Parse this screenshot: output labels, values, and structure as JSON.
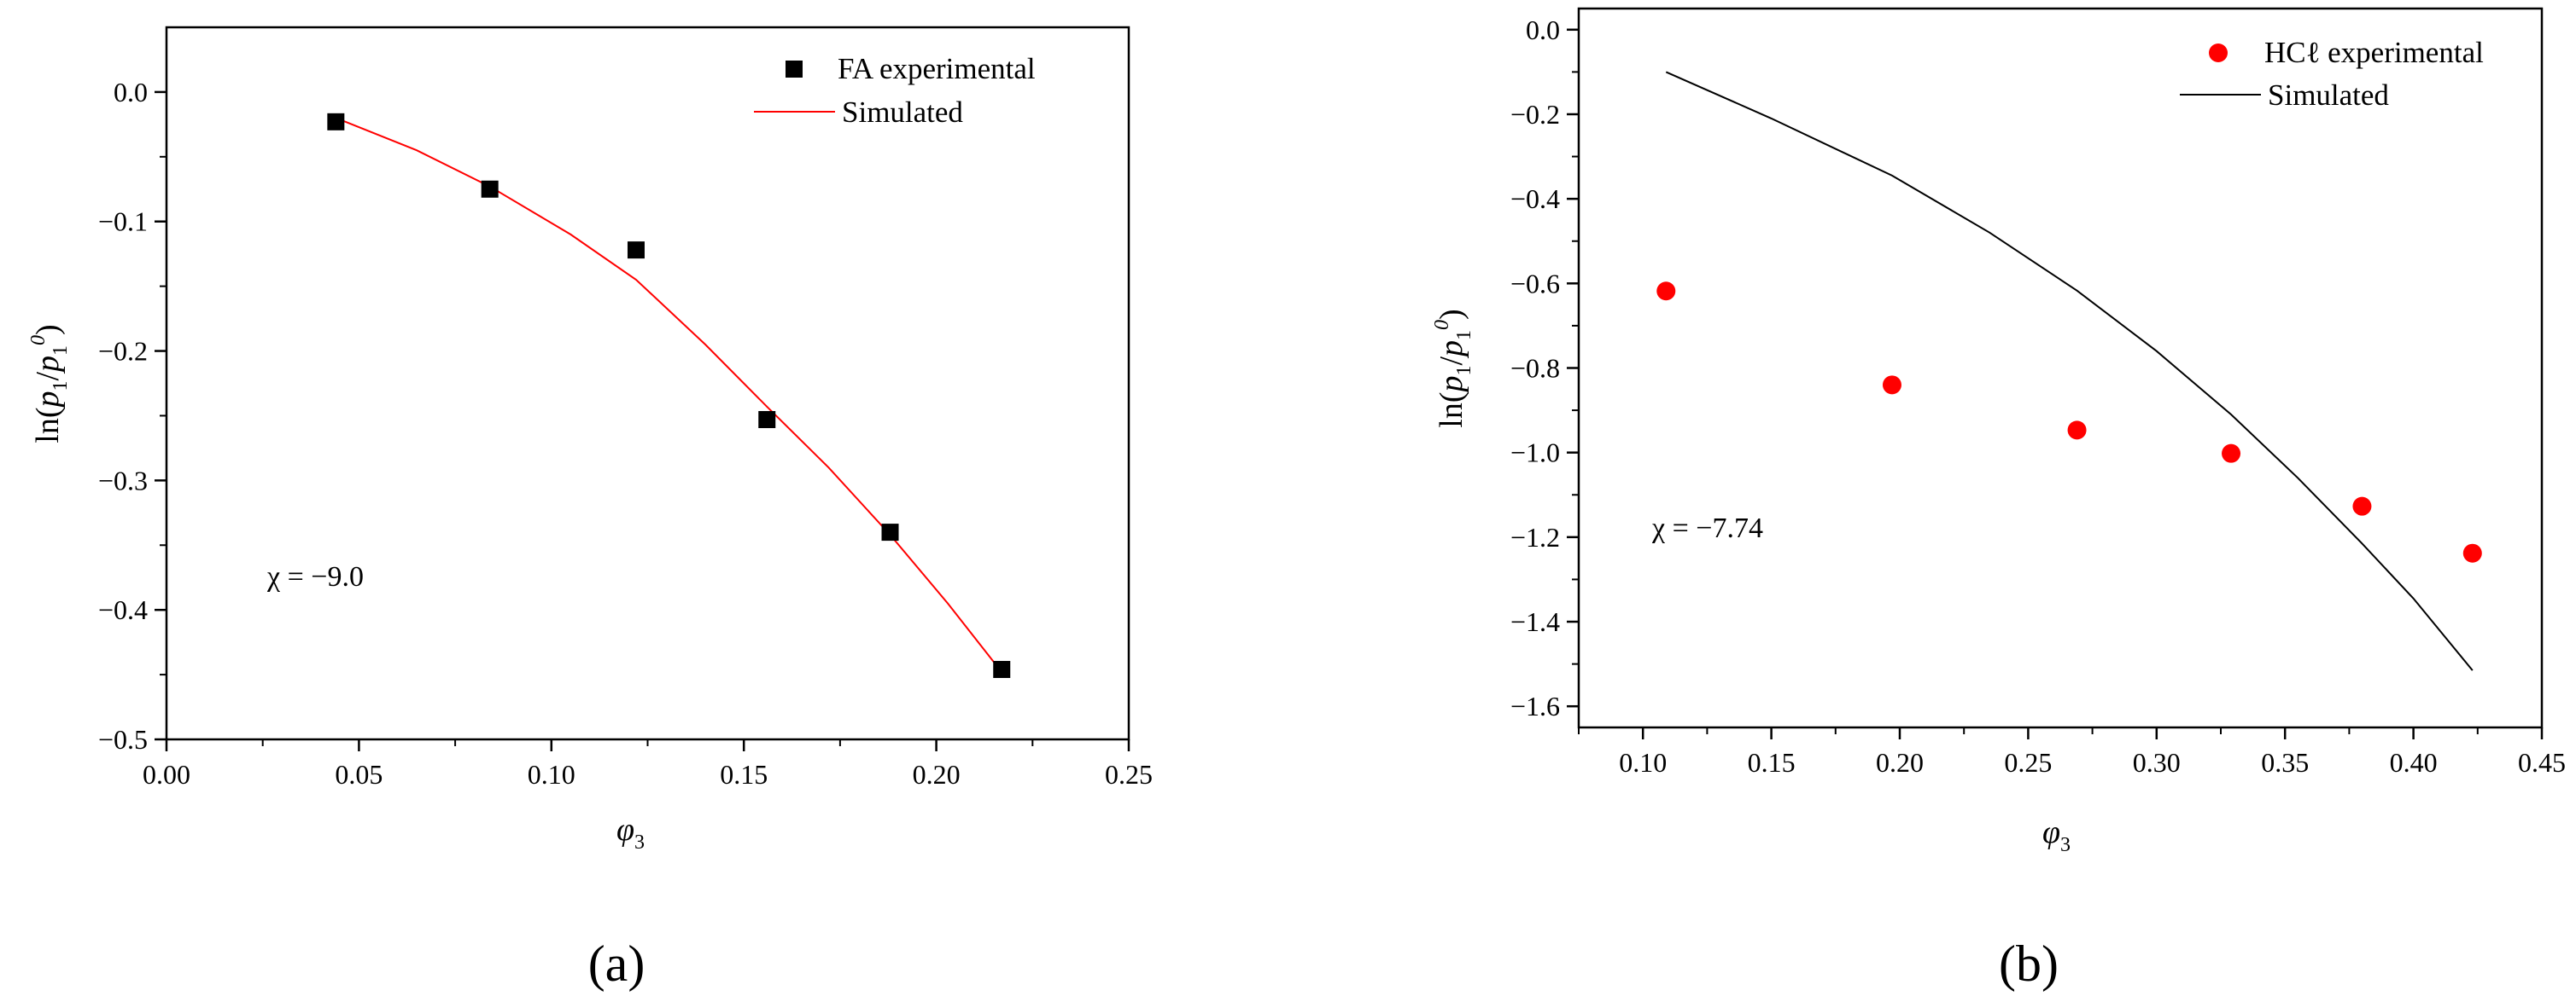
{
  "chart_data": [
    {
      "type": "scatter",
      "panel_label": "(a)",
      "xlabel": "φ3",
      "ylabel": "ln(p1/p1^0)",
      "xlim": [
        0.0,
        0.25
      ],
      "ylim": [
        -0.5,
        0.05
      ],
      "xticks": [
        0.0,
        0.05,
        0.1,
        0.15,
        0.2,
        0.25
      ],
      "xtick_labels": [
        "0.00",
        "0.05",
        "0.10",
        "0.15",
        "0.20",
        "0.25"
      ],
      "yticks": [
        0.0,
        -0.1,
        -0.2,
        -0.3,
        -0.4,
        -0.5
      ],
      "ytick_labels": [
        "0.0",
        "−0.1",
        "−0.2",
        "−0.3",
        "−0.4",
        "−0.5"
      ],
      "grid": false,
      "legend_position": "top-right",
      "annotation": "χ = −9.0",
      "series": [
        {
          "name": "FA experimental",
          "kind": "markers",
          "marker": "square",
          "color": "#000000",
          "x": [
            0.044,
            0.084,
            0.122,
            0.156,
            0.188,
            0.217
          ],
          "y": [
            -0.023,
            -0.075,
            -0.122,
            -0.253,
            -0.34,
            -0.446
          ]
        },
        {
          "name": "Simulated",
          "kind": "line",
          "color": "#ff0000",
          "x": [
            0.044,
            0.065,
            0.084,
            0.105,
            0.122,
            0.14,
            0.156,
            0.172,
            0.188,
            0.203,
            0.217
          ],
          "y": [
            -0.02,
            -0.045,
            -0.073,
            -0.11,
            -0.145,
            -0.195,
            -0.243,
            -0.29,
            -0.342,
            -0.395,
            -0.448
          ]
        }
      ]
    },
    {
      "type": "scatter",
      "panel_label": "(b)",
      "xlabel": "φ3",
      "ylabel": "ln(p1/p1^0)",
      "xlim": [
        0.075,
        0.45
      ],
      "ylim": [
        -1.65,
        0.05
      ],
      "xticks": [
        0.1,
        0.15,
        0.2,
        0.25,
        0.3,
        0.35,
        0.4,
        0.45
      ],
      "xtick_labels": [
        "0.10",
        "0.15",
        "0.20",
        "0.25",
        "0.30",
        "0.35",
        "0.40",
        "0.45"
      ],
      "yticks": [
        0.0,
        -0.2,
        -0.4,
        -0.6,
        -0.8,
        -1.0,
        -1.2,
        -1.4,
        -1.6
      ],
      "ytick_labels": [
        "0.0",
        "−0.2",
        "−0.4",
        "−0.6",
        "−0.8",
        "−1.0",
        "−1.2",
        "−1.4",
        "−1.6"
      ],
      "grid": false,
      "legend_position": "top-right",
      "annotation": "χ = −7.74",
      "series": [
        {
          "name": "HCℓ experimental",
          "kind": "markers",
          "marker": "circle",
          "color": "#ff0000",
          "x": [
            0.109,
            0.197,
            0.269,
            0.329,
            0.38,
            0.423
          ],
          "y": [
            -0.618,
            -0.84,
            -0.947,
            -1.002,
            -1.127,
            -1.238
          ]
        },
        {
          "name": "Simulated",
          "kind": "line",
          "color": "#000000",
          "x": [
            0.109,
            0.15,
            0.197,
            0.235,
            0.269,
            0.3,
            0.329,
            0.355,
            0.38,
            0.4,
            0.423
          ],
          "y": [
            -0.1,
            -0.21,
            -0.345,
            -0.48,
            -0.617,
            -0.76,
            -0.91,
            -1.06,
            -1.215,
            -1.345,
            -1.515
          ]
        }
      ]
    }
  ]
}
